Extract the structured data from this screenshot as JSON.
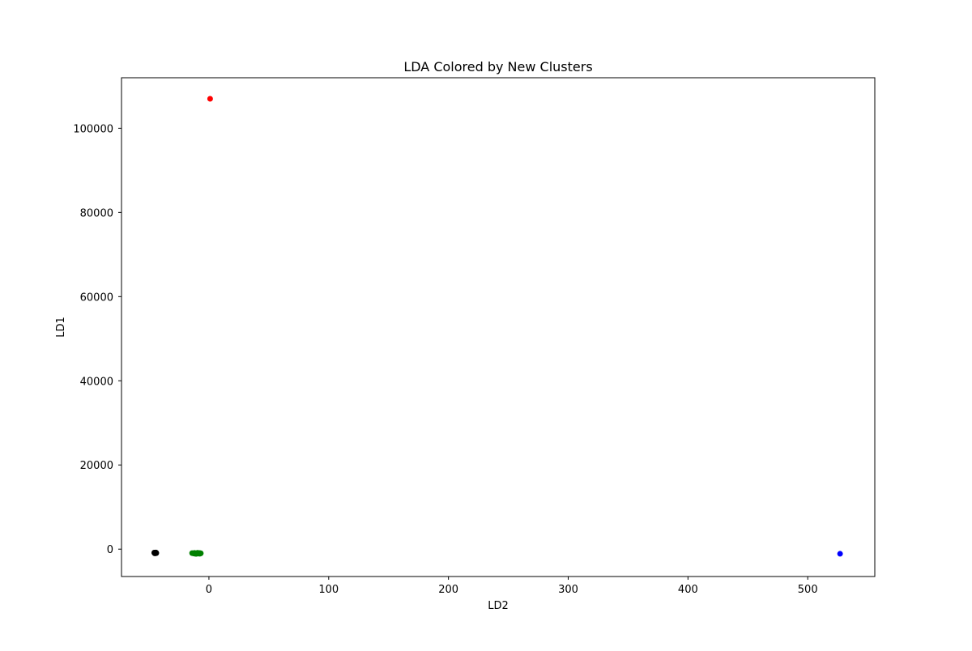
{
  "chart_data": {
    "type": "scatter",
    "title": "LDA Colored by New Clusters",
    "xlabel": "LD2",
    "ylabel": "LD1",
    "xlim": [
      -73,
      556
    ],
    "ylim": [
      -6500,
      112000
    ],
    "xticks": [
      0,
      100,
      200,
      300,
      400,
      500
    ],
    "yticks": [
      0,
      20000,
      40000,
      60000,
      80000,
      100000
    ],
    "grid": false,
    "series": [
      {
        "color": "#ff0000",
        "points": [
          [
            1.0,
            107000
          ]
        ]
      },
      {
        "color": "#000000",
        "points": [
          [
            -45.5,
            -900
          ],
          [
            -45.0,
            -850
          ],
          [
            -44.5,
            -900
          ],
          [
            -44.0,
            -950
          ],
          [
            -45.2,
            -1000
          ],
          [
            -44.3,
            -800
          ],
          [
            -45.6,
            -820
          ],
          [
            -44.7,
            -980
          ],
          [
            -44.1,
            -870
          ],
          [
            -45.3,
            -930
          ]
        ]
      },
      {
        "color": "#008000",
        "points": [
          [
            -14.0,
            -950
          ],
          [
            -13.0,
            -1000
          ],
          [
            -12.0,
            -900
          ],
          [
            -11.0,
            -1050
          ],
          [
            -10.0,
            -980
          ],
          [
            -9.0,
            -1020
          ],
          [
            -8.0,
            -930
          ],
          [
            -7.5,
            -1080
          ],
          [
            -7.0,
            -970
          ],
          [
            -11.5,
            -1100
          ],
          [
            -9.5,
            -880
          ],
          [
            -8.5,
            -1060
          ],
          [
            -12.5,
            -1020
          ],
          [
            -10.5,
            -1120
          ],
          [
            -6.8,
            -1000
          ]
        ]
      },
      {
        "color": "#0000ff",
        "points": [
          [
            527.0,
            -1100
          ]
        ]
      }
    ]
  }
}
